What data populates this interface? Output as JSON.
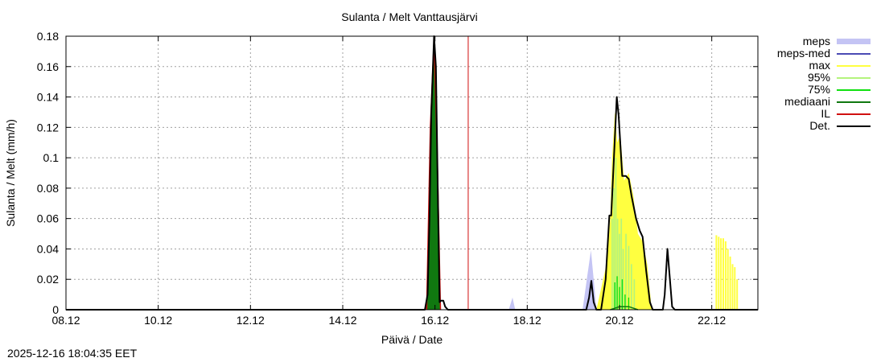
{
  "timestamp": "2025-12-16 18:04:35 EET",
  "colors": {
    "meps": "#c4c4f4",
    "meps_med": "#4b4bb4",
    "max": "#ffff40",
    "p95": "#b4f47c",
    "p75": "#10e010",
    "median": "#107810",
    "il": "#d01010",
    "det": "#000000",
    "grid": "#a0a0a0"
  },
  "chart_data": {
    "type": "area",
    "title": "Sulanta / Melt  Vanttausjärvi",
    "xlabel": "Päivä / Date",
    "ylabel": "Sulanta / Melt (mm/h)",
    "xlim": [
      0,
      15.0
    ],
    "ylim": [
      0,
      0.18
    ],
    "x_unit": "days since 08.12",
    "grid": true,
    "legend_position": "right-outside",
    "xticks": [
      {
        "v": 0,
        "label": "08.12"
      },
      {
        "v": 2,
        "label": "10.12"
      },
      {
        "v": 4,
        "label": "12.12"
      },
      {
        "v": 6,
        "label": "14.12"
      },
      {
        "v": 8,
        "label": "16.12"
      },
      {
        "v": 10,
        "label": "18.12"
      },
      {
        "v": 12,
        "label": "20.12"
      },
      {
        "v": 14,
        "label": "22.12"
      }
    ],
    "yticks": [
      {
        "v": 0,
        "label": "0"
      },
      {
        "v": 0.02,
        "label": "0.02"
      },
      {
        "v": 0.04,
        "label": "0.04"
      },
      {
        "v": 0.06,
        "label": "0.06"
      },
      {
        "v": 0.08,
        "label": "0.08"
      },
      {
        "v": 0.1,
        "label": "0.1"
      },
      {
        "v": 0.12,
        "label": "0.12"
      },
      {
        "v": 0.14,
        "label": "0.14"
      },
      {
        "v": 0.16,
        "label": "0.16"
      },
      {
        "v": 0.18,
        "label": "0.18"
      }
    ],
    "il_x": 8.72,
    "legend": [
      {
        "label": "meps",
        "key": "meps",
        "style": "box"
      },
      {
        "label": "meps-med",
        "key": "meps_med",
        "style": "line"
      },
      {
        "label": "max",
        "key": "max",
        "style": "line"
      },
      {
        "label": "95%",
        "key": "p95",
        "style": "line"
      },
      {
        "label": "75%",
        "key": "p75",
        "style": "line"
      },
      {
        "label": "mediaani",
        "key": "median",
        "style": "line"
      },
      {
        "label": "IL",
        "key": "il",
        "style": "line"
      },
      {
        "label": "Det.",
        "key": "det",
        "style": "line"
      }
    ],
    "series": [
      {
        "key": "meps",
        "render": "area",
        "points": [
          [
            9.6,
            0
          ],
          [
            9.68,
            0.008
          ],
          [
            9.74,
            0
          ],
          [
            11.2,
            0
          ],
          [
            11.3,
            0.022
          ],
          [
            11.38,
            0.039
          ],
          [
            11.44,
            0.02
          ],
          [
            11.5,
            0
          ]
        ]
      },
      {
        "key": "max",
        "render": "area",
        "points": [
          [
            11.5,
            0
          ],
          [
            11.72,
            0.03
          ],
          [
            11.8,
            0.06
          ],
          [
            11.84,
            0.1
          ],
          [
            11.9,
            0.13
          ],
          [
            11.95,
            0.11
          ],
          [
            12.02,
            0.115
          ],
          [
            12.1,
            0.085
          ],
          [
            12.2,
            0.09
          ],
          [
            12.3,
            0.075
          ],
          [
            12.4,
            0.05
          ],
          [
            12.5,
            0.045
          ],
          [
            12.6,
            0.03
          ],
          [
            12.7,
            0
          ],
          [
            13.0,
            0
          ]
        ]
      },
      {
        "key": "max",
        "render": "bars",
        "width": 0.035,
        "bars": [
          [
            14.1,
            0.049
          ],
          [
            14.15,
            0.048
          ],
          [
            14.2,
            0.047
          ],
          [
            14.25,
            0.047
          ],
          [
            14.3,
            0.045
          ],
          [
            14.35,
            0.04
          ],
          [
            14.4,
            0.035
          ],
          [
            14.45,
            0.03
          ],
          [
            14.5,
            0.028
          ],
          [
            14.55,
            0.02
          ]
        ]
      },
      {
        "key": "p95",
        "render": "bars",
        "width": 0.03,
        "bars": [
          [
            11.84,
            0.06
          ],
          [
            11.88,
            0.08
          ],
          [
            11.92,
            0.1
          ],
          [
            11.96,
            0.06
          ],
          [
            12.0,
            0.05
          ],
          [
            12.04,
            0.06
          ],
          [
            12.08,
            0.04
          ],
          [
            12.14,
            0.05
          ],
          [
            12.2,
            0.042
          ],
          [
            12.26,
            0.03
          ],
          [
            12.32,
            0.02
          ]
        ]
      },
      {
        "key": "p75",
        "render": "bars",
        "width": 0.025,
        "bars": [
          [
            11.9,
            0.018
          ],
          [
            11.95,
            0.022
          ],
          [
            12.0,
            0.015
          ],
          [
            12.06,
            0.02
          ],
          [
            12.12,
            0.01
          ],
          [
            12.2,
            0.008
          ],
          [
            7.92,
            0.04
          ],
          [
            7.97,
            0.12
          ],
          [
            8.02,
            0.1
          ]
        ]
      },
      {
        "key": "median",
        "render": "area",
        "points": [
          [
            7.8,
            0
          ],
          [
            7.86,
            0.02
          ],
          [
            7.92,
            0.14
          ],
          [
            7.98,
            0.178
          ],
          [
            8.02,
            0.16
          ],
          [
            8.07,
            0.05
          ],
          [
            8.12,
            0
          ]
        ]
      },
      {
        "key": "median",
        "render": "line",
        "points": [
          [
            11.8,
            0
          ],
          [
            11.9,
            0.001
          ],
          [
            12.0,
            0.002
          ],
          [
            12.2,
            0.002
          ],
          [
            12.3,
            0.001
          ],
          [
            12.4,
            0
          ]
        ]
      },
      {
        "key": "il",
        "render": "line",
        "points": [
          [
            7.82,
            0
          ],
          [
            7.9,
            0.12
          ],
          [
            7.98,
            0.178
          ],
          [
            8.05,
            0.1
          ],
          [
            8.12,
            0
          ]
        ]
      },
      {
        "key": "det",
        "render": "line",
        "points": [
          [
            0,
            0
          ],
          [
            7.78,
            0
          ],
          [
            7.84,
            0.01
          ],
          [
            7.88,
            0.06
          ],
          [
            7.92,
            0.13
          ],
          [
            7.98,
            0.18
          ],
          [
            8.02,
            0.16
          ],
          [
            8.06,
            0.08
          ],
          [
            8.1,
            0.005
          ],
          [
            8.13,
            0.006
          ],
          [
            8.18,
            0.006
          ],
          [
            8.22,
            0.002
          ],
          [
            8.28,
            0
          ],
          [
            11.28,
            0
          ],
          [
            11.34,
            0.008
          ],
          [
            11.39,
            0.019
          ],
          [
            11.44,
            0.005
          ],
          [
            11.5,
            0
          ],
          [
            11.6,
            0
          ],
          [
            11.7,
            0.02
          ],
          [
            11.78,
            0.062
          ],
          [
            11.82,
            0.062
          ],
          [
            11.88,
            0.1
          ],
          [
            11.94,
            0.14
          ],
          [
            11.98,
            0.128
          ],
          [
            12.06,
            0.088
          ],
          [
            12.14,
            0.088
          ],
          [
            12.2,
            0.086
          ],
          [
            12.26,
            0.075
          ],
          [
            12.36,
            0.06
          ],
          [
            12.44,
            0.052
          ],
          [
            12.5,
            0.048
          ],
          [
            12.58,
            0.025
          ],
          [
            12.66,
            0.005
          ],
          [
            12.72,
            0
          ],
          [
            12.94,
            0
          ],
          [
            12.98,
            0.01
          ],
          [
            13.04,
            0.04
          ],
          [
            13.08,
            0.025
          ],
          [
            13.14,
            0.002
          ],
          [
            13.2,
            0
          ],
          [
            15.0,
            0
          ]
        ]
      }
    ]
  }
}
